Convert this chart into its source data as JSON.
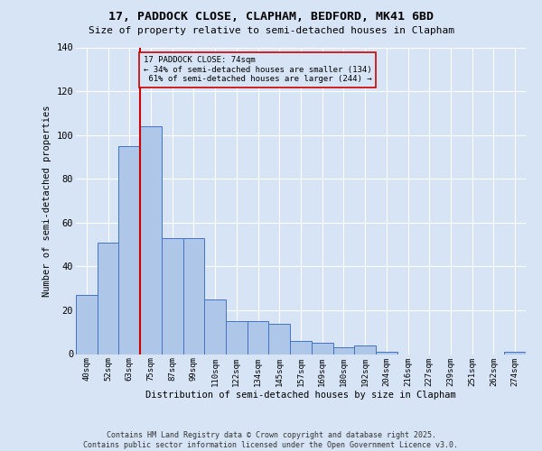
{
  "title1": "17, PADDOCK CLOSE, CLAPHAM, BEDFORD, MK41 6BD",
  "title2": "Size of property relative to semi-detached houses in Clapham",
  "xlabel": "Distribution of semi-detached houses by size in Clapham",
  "ylabel": "Number of semi-detached properties",
  "categories": [
    "40sqm",
    "52sqm",
    "63sqm",
    "75sqm",
    "87sqm",
    "99sqm",
    "110sqm",
    "122sqm",
    "134sqm",
    "145sqm",
    "157sqm",
    "169sqm",
    "180sqm",
    "192sqm",
    "204sqm",
    "216sqm",
    "227sqm",
    "239sqm",
    "251sqm",
    "262sqm",
    "274sqm"
  ],
  "values": [
    27,
    51,
    95,
    104,
    53,
    53,
    25,
    15,
    15,
    14,
    6,
    5,
    3,
    4,
    1,
    0,
    0,
    0,
    0,
    0,
    1
  ],
  "vline_x": 2.5,
  "property_label": "17 PADDOCK CLOSE: 74sqm",
  "pct_smaller": 34,
  "count_smaller": 134,
  "pct_larger": 61,
  "count_larger": 244,
  "bar_color": "#aec6e8",
  "bar_edge_color": "#4472c4",
  "vline_color": "#cc0000",
  "annotation_box_color": "#cc0000",
  "bg_color": "#d6e4f5",
  "grid_color": "#ffffff",
  "footer1": "Contains HM Land Registry data © Crown copyright and database right 2025.",
  "footer2": "Contains public sector information licensed under the Open Government Licence v3.0.",
  "ylim": [
    0,
    140
  ],
  "yticks": [
    0,
    20,
    40,
    60,
    80,
    100,
    120,
    140
  ]
}
